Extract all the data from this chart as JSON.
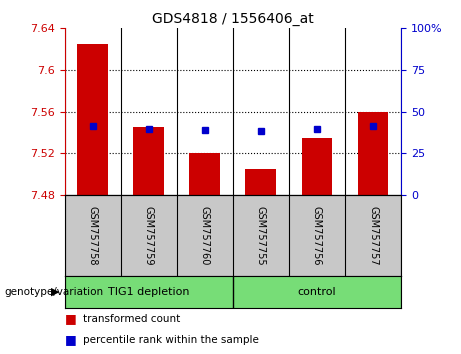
{
  "title": "GDS4818 / 1556406_at",
  "samples": [
    "GSM757758",
    "GSM757759",
    "GSM757760",
    "GSM757755",
    "GSM757756",
    "GSM757757"
  ],
  "bar_values": [
    7.625,
    7.545,
    7.52,
    7.505,
    7.535,
    7.56
  ],
  "percentile_values": [
    7.546,
    7.543,
    7.542,
    7.541,
    7.543,
    7.546
  ],
  "baseline": 7.48,
  "ylim_left": [
    7.48,
    7.64
  ],
  "ylim_right": [
    0,
    100
  ],
  "yticks_left": [
    7.48,
    7.52,
    7.56,
    7.6,
    7.64
  ],
  "ytick_labels_left": [
    "7.48",
    "7.52",
    "7.56",
    "7.6",
    "7.64"
  ],
  "yticks_right": [
    0,
    25,
    50,
    75,
    100
  ],
  "ytick_labels_right": [
    "0",
    "25",
    "50",
    "75",
    "100%"
  ],
  "hlines": [
    7.52,
    7.56,
    7.6
  ],
  "bar_color": "#cc0000",
  "percentile_color": "#0000cc",
  "bar_width": 0.55,
  "xlabel_left": "genotype/variation",
  "legend_items": [
    {
      "label": "transformed count",
      "color": "#cc0000"
    },
    {
      "label": "percentile rank within the sample",
      "color": "#0000cc"
    }
  ],
  "background_xtick": "#c8c8c8",
  "group_box_color": "#77dd77",
  "left_axis_color": "#cc0000",
  "right_axis_color": "#0000cc",
  "group1_label": "TIG1 depletion",
  "group2_label": "control",
  "group_sep_x": 2.5,
  "xlim": [
    -0.5,
    5.5
  ]
}
